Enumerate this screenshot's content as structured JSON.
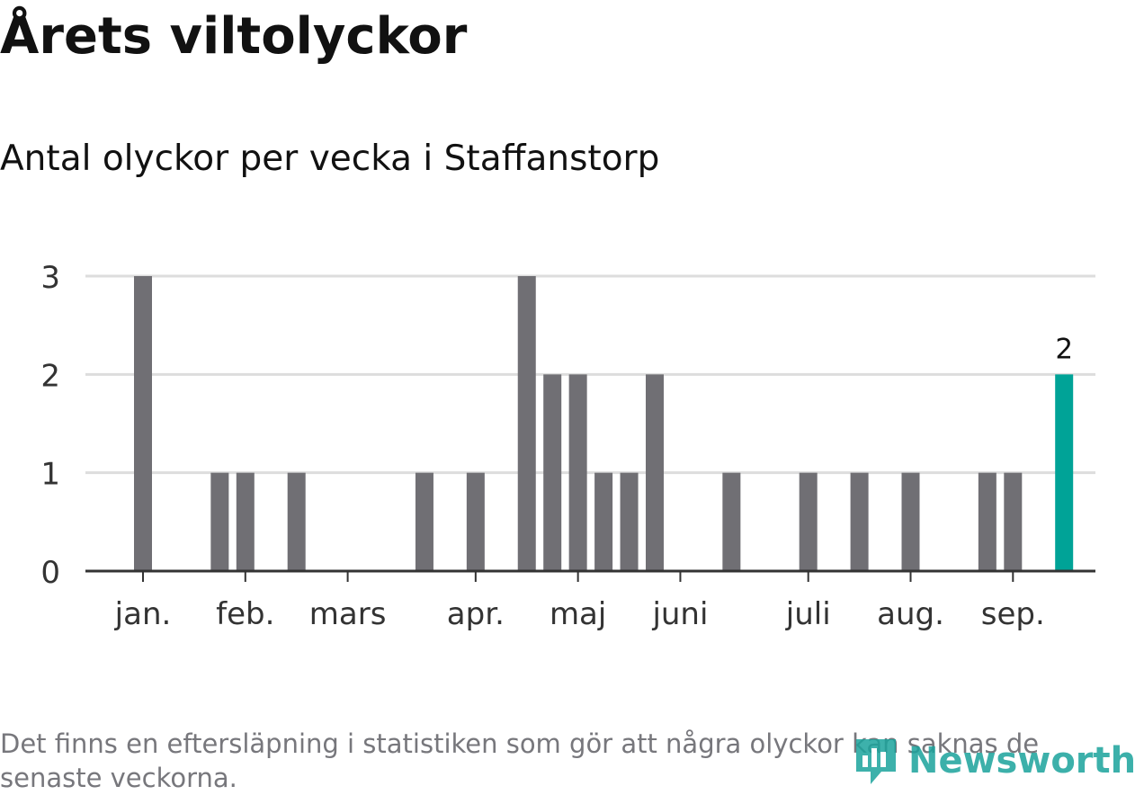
{
  "title": "Årets viltolyckor",
  "subtitle": "Antal olyckor per vecka i Staffanstorp",
  "footnote": "Det finns en eftersläpning i statistiken som gör att några olyckor kan saknas de senaste veckorna.",
  "logo": {
    "text": "Newsworthy",
    "icon": "newsworthy-logo-icon",
    "color": "#1ba39c"
  },
  "colors": {
    "bar": "#706f74",
    "highlight": "#00a397",
    "grid": "#dddddd",
    "axis": "#333333"
  },
  "chart_data": {
    "type": "bar",
    "x_unit": "week",
    "weeks": [
      1,
      2,
      3,
      4,
      5,
      6,
      7,
      8,
      9,
      10,
      11,
      12,
      13,
      14,
      15,
      16,
      17,
      18,
      19,
      20,
      21,
      22,
      23,
      24,
      25,
      26,
      27,
      28,
      29,
      30,
      31,
      32,
      33,
      34,
      35,
      36,
      37,
      38
    ],
    "values": [
      3,
      0,
      0,
      1,
      1,
      0,
      1,
      0,
      0,
      0,
      0,
      1,
      0,
      1,
      0,
      3,
      2,
      2,
      1,
      1,
      2,
      0,
      0,
      1,
      0,
      0,
      1,
      0,
      1,
      0,
      1,
      0,
      0,
      1,
      1,
      0,
      2,
      0
    ],
    "highlight_week": 37,
    "highlight_label": "2",
    "y_ticks": [
      0,
      1,
      2,
      3
    ],
    "ylim": [
      0,
      3
    ],
    "x_ticks": [
      {
        "label": "jan.",
        "week": 1
      },
      {
        "label": "feb.",
        "week": 5
      },
      {
        "label": "mars",
        "week": 9
      },
      {
        "label": "apr.",
        "week": 14
      },
      {
        "label": "maj",
        "week": 18
      },
      {
        "label": "juni",
        "week": 22
      },
      {
        "label": "juli",
        "week": 27
      },
      {
        "label": "aug.",
        "week": 31
      },
      {
        "label": "sep.",
        "week": 35
      }
    ],
    "grid": true
  }
}
